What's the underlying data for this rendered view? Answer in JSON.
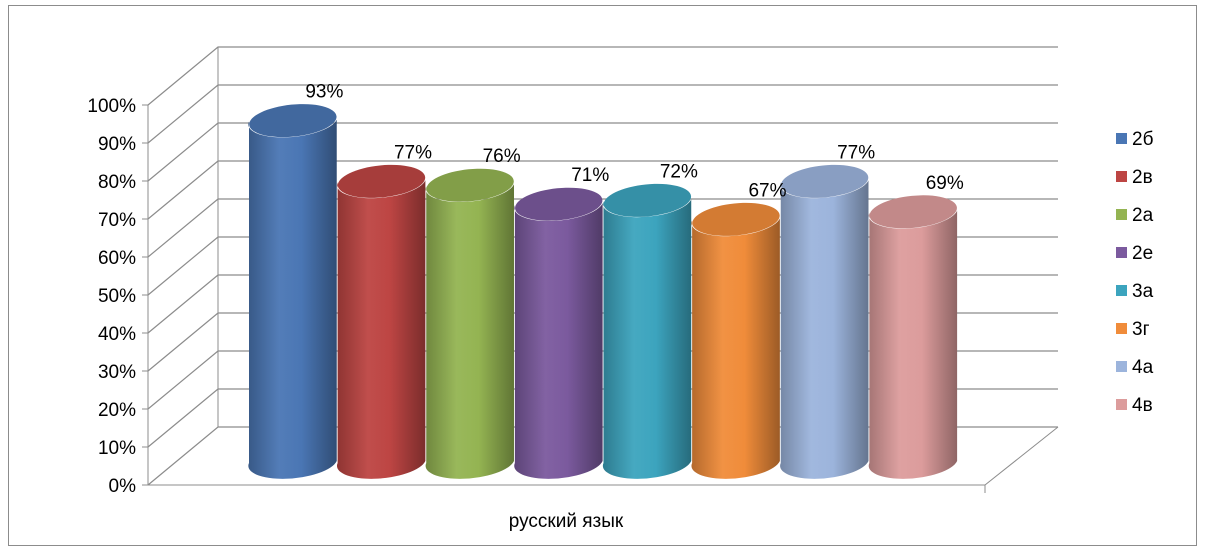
{
  "chart_data": {
    "type": "bar",
    "style": "3d-cylinder",
    "categories": [
      "русский язык"
    ],
    "series": [
      {
        "name": "2б",
        "values": [
          0.93
        ],
        "label": "93%",
        "color": "#4a76b4"
      },
      {
        "name": "2в",
        "values": [
          0.77
        ],
        "label": "77%",
        "color": "#bd4543"
      },
      {
        "name": "2а",
        "values": [
          0.76
        ],
        "label": "76%",
        "color": "#94b452"
      },
      {
        "name": "2е",
        "values": [
          0.71
        ],
        "label": "71%",
        "color": "#7b5a9e"
      },
      {
        "name": "3а",
        "values": [
          0.72
        ],
        "label": "72%",
        "color": "#3ca4be"
      },
      {
        "name": "3г",
        "values": [
          0.67
        ],
        "label": "67%",
        "color": "#f08c3a"
      },
      {
        "name": "4а",
        "values": [
          0.77
        ],
        "label": "77%",
        "color": "#9cb4dc"
      },
      {
        "name": "4в",
        "values": [
          0.69
        ],
        "label": "69%",
        "color": "#dc9c9c"
      }
    ],
    "ylim": [
      0,
      1
    ],
    "yticks": [
      "0%",
      "10%",
      "20%",
      "30%",
      "40%",
      "50%",
      "60%",
      "70%",
      "80%",
      "90%",
      "100%"
    ],
    "grid": true,
    "legend": "right"
  }
}
